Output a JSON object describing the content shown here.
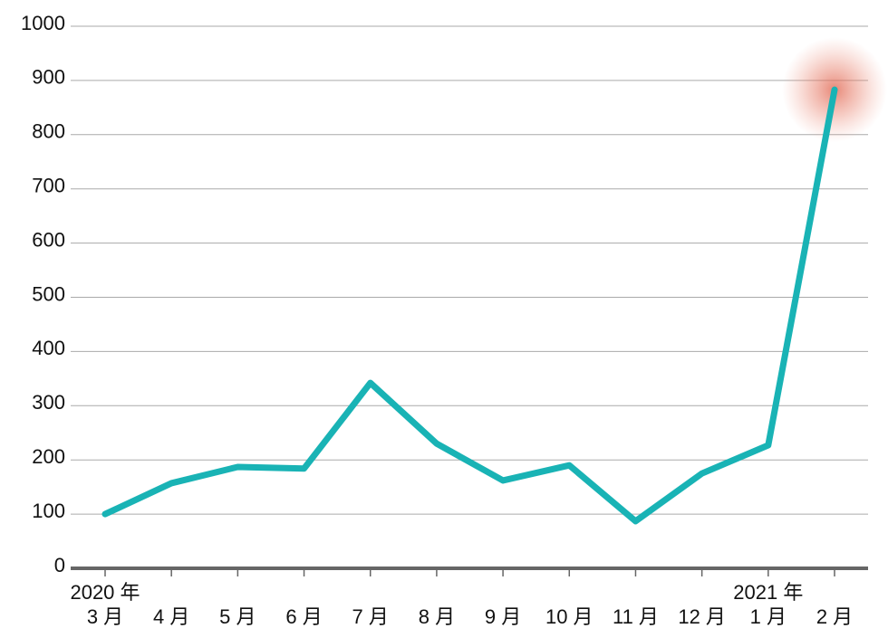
{
  "chart_data": {
    "type": "line",
    "categories": [
      "3 月",
      "4 月",
      "5 月",
      "6 月",
      "7 月",
      "8 月",
      "9 月",
      "10 月",
      "11 月",
      "12 月",
      "1 月",
      "2 月"
    ],
    "year_labels": [
      "2020 年",
      null,
      null,
      null,
      null,
      null,
      null,
      null,
      null,
      null,
      "2021 年",
      null
    ],
    "series": [
      {
        "color": "#19b3b5",
        "values": [
          100,
          157,
          187,
          184,
          342,
          230,
          162,
          190,
          87,
          175,
          227,
          883
        ]
      }
    ],
    "ylim": [
      0,
      1000
    ],
    "yticks": [
      0,
      100,
      200,
      300,
      400,
      500,
      600,
      700,
      800,
      900,
      1000
    ],
    "grid": true,
    "highlight_index": 11
  }
}
